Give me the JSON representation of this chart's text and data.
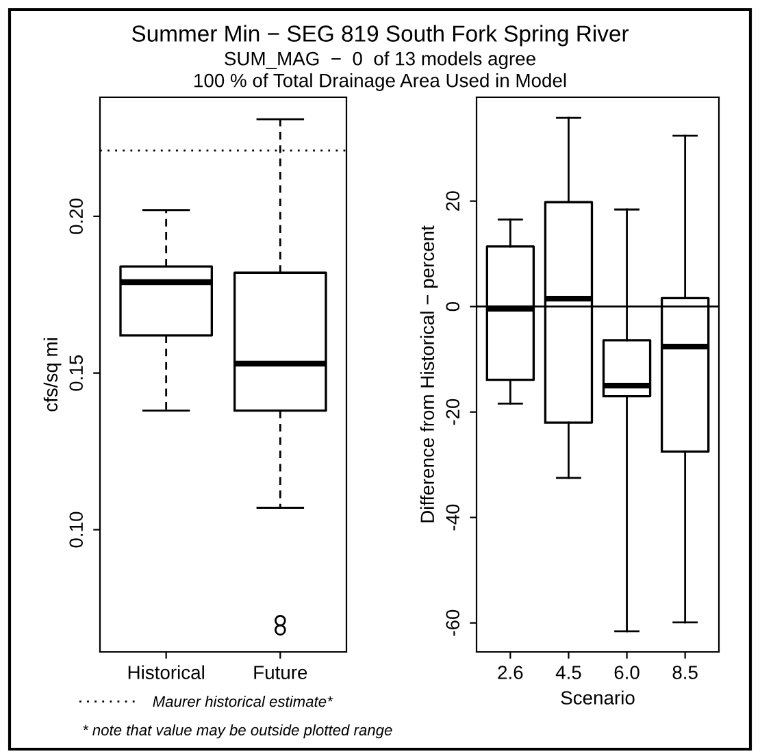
{
  "chart_data": [
    {
      "type": "box",
      "title": "Summer Min − SEG 819 South Fork Spring River",
      "subtitle": "SUM_MAG  −  0  of 13 models agree\n100 % of Total Drainage Area Used in Model",
      "ylabel": "cfs/sq mi",
      "categories": [
        "Historical",
        "Future"
      ],
      "boxes": [
        {
          "low": 0.138,
          "q1": 0.162,
          "median": 0.179,
          "q3": 0.184,
          "high": 0.202
        },
        {
          "low": 0.107,
          "q1": 0.138,
          "median": 0.153,
          "q3": 0.182,
          "high": 0.231,
          "outliers": [
            0.071,
            0.068
          ]
        }
      ],
      "ylim": [
        0.061,
        0.238
      ],
      "yticks": [
        {
          "value": 0.1,
          "label": "0.10"
        },
        {
          "value": 0.15,
          "label": "0.15"
        },
        {
          "value": 0.2,
          "label": "0.20"
        }
      ],
      "line_style": "dashed",
      "ref_lines": [
        {
          "axis": "y",
          "value": 0.221,
          "label": "Maurer historical estimate*",
          "line_style": "dotted",
          "color": "#000000"
        }
      ],
      "annotations": [
        "* note that value may be outside plotted range"
      ],
      "grid": false,
      "legend": "bottom"
    },
    {
      "type": "box",
      "xlabel": "Scenario",
      "ylabel": "Difference from Historical − percent",
      "categories": [
        "2.6",
        "4.5",
        "6.0",
        "8.5"
      ],
      "boxes": [
        {
          "low": -18.4,
          "q1": -13.9,
          "median": -0.4,
          "q3": 11.4,
          "high": 16.5
        },
        {
          "low": -32.5,
          "q1": -22.0,
          "median": 1.5,
          "q3": 19.8,
          "high": 35.8
        },
        {
          "low": -61.6,
          "q1": -17.0,
          "median": -15.0,
          "q3": -6.4,
          "high": 18.4
        },
        {
          "low": -59.9,
          "q1": -27.5,
          "median": -7.6,
          "q3": 1.6,
          "high": 32.4
        }
      ],
      "ylim": [
        -65.5,
        39.7
      ],
      "yticks": [
        -60,
        -40,
        -20,
        0,
        20
      ],
      "line_style": "solid",
      "ref_lines": [
        {
          "axis": "y",
          "value": 0,
          "line_style": "solid",
          "color": "#000000"
        }
      ],
      "grid": false
    }
  ]
}
